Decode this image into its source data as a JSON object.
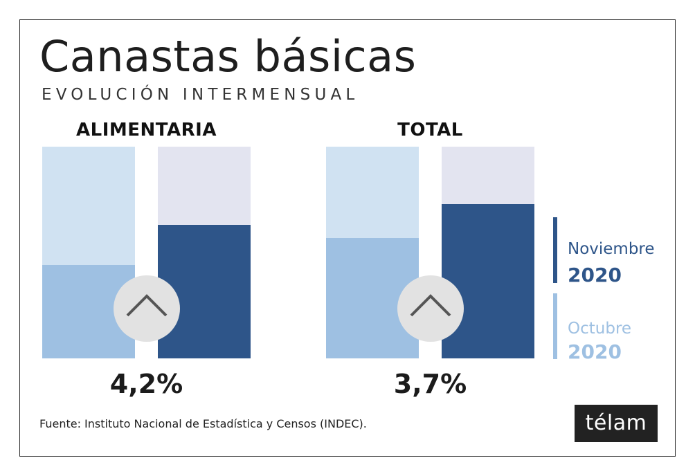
{
  "header": {
    "title": "Canastas básicas",
    "subtitle": "EVOLUCIÓN INTERMENSUAL"
  },
  "chart_data": [
    {
      "type": "bar",
      "title": "ALIMENTARIA",
      "categories": [
        "Octubre 2020",
        "Noviembre 2020"
      ],
      "values": [
        44,
        63
      ],
      "ylim": [
        0,
        100
      ],
      "change_label": "4,2%",
      "change_icon": "chevron-up-icon"
    },
    {
      "type": "bar",
      "title": "TOTAL",
      "categories": [
        "Octubre 2020",
        "Noviembre 2020"
      ],
      "values": [
        57,
        73
      ],
      "ylim": [
        0,
        100
      ],
      "change_label": "3,7%",
      "change_icon": "chevron-up-icon"
    }
  ],
  "legend": [
    {
      "name": "Noviembre",
      "year": "2020",
      "color": "#2e5589"
    },
    {
      "name": "Octubre",
      "year": "2020",
      "color": "#9ec0e2"
    }
  ],
  "colors": {
    "octubre_fill": "#9ec0e2",
    "octubre_track": "#d0e2f2",
    "noviembre_fill": "#2e5589",
    "noviembre_track": "#e3e4f0"
  },
  "footer": {
    "source": "Fuente: Instituto Nacional de Estadística y Censos (INDEC).",
    "logo": "télam"
  }
}
